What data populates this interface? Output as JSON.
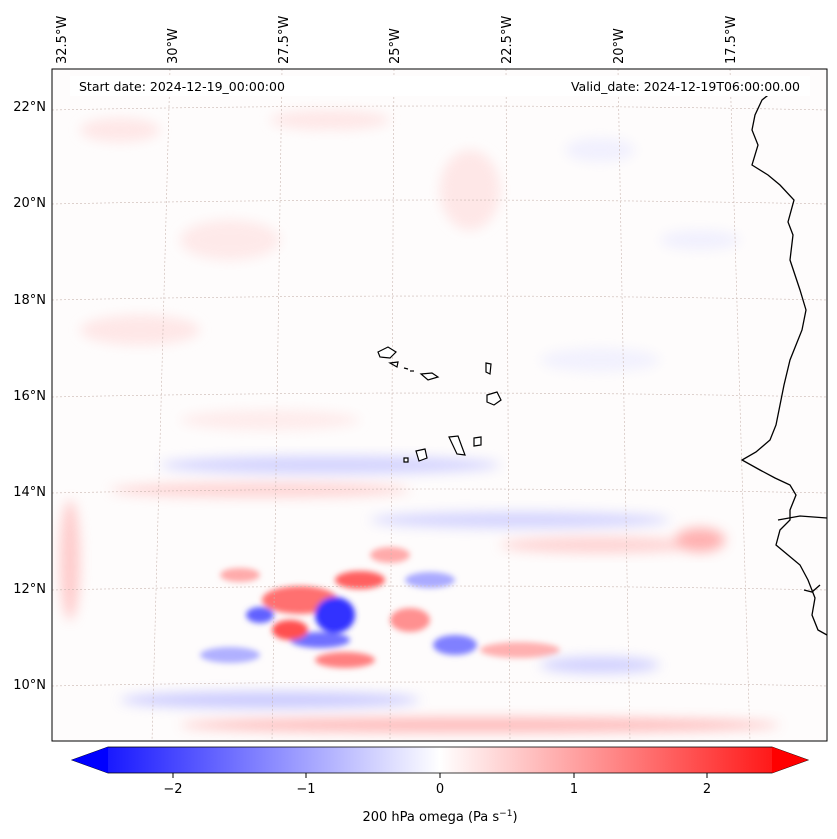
{
  "map": {
    "start_date": "Start date: 2024-12-19_00:00:00",
    "valid_date": "Valid_date: 2024-12-19T06:00:00.00",
    "lon_labels": [
      "32.5°W",
      "30°W",
      "27.5°W",
      "25°W",
      "22.5°W",
      "20°W",
      "17.5°W"
    ],
    "lat_labels": [
      "22°N",
      "20°N",
      "18°N",
      "16°N",
      "14°N",
      "12°N",
      "10°N"
    ]
  },
  "colorbar": {
    "ticks": [
      "−2",
      "−1",
      "0",
      "1",
      "2"
    ],
    "label_main": "200 hPa omega (Pa s",
    "label_exp": "−1",
    "label_close": ")",
    "colors": {
      "neg": "#0000ff",
      "zero": "#ffffff",
      "pos": "#ff0000"
    }
  }
}
